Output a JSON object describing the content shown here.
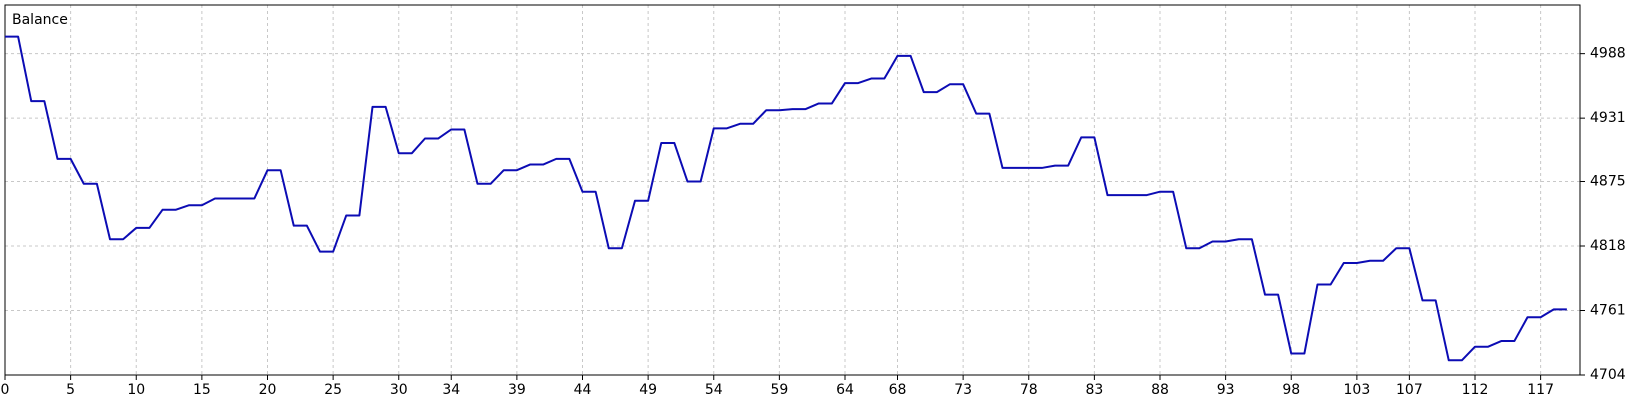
{
  "chart_data": {
    "type": "line",
    "title": "Balance",
    "color": "#0c0cb4",
    "values": [
      5003,
      5003,
      4946,
      4946,
      4895,
      4895,
      4873,
      4873,
      4824,
      4824,
      4834,
      4834,
      4850,
      4850,
      4854,
      4854,
      4860,
      4860,
      4860,
      4860,
      4885,
      4885,
      4836,
      4836,
      4813,
      4813,
      4845,
      4845,
      4941,
      4941,
      4900,
      4900,
      4913,
      4913,
      4921,
      4921,
      4873,
      4873,
      4885,
      4885,
      4890,
      4890,
      4895,
      4895,
      4866,
      4866,
      4816,
      4816,
      4858,
      4858,
      4909,
      4909,
      4875,
      4875,
      4922,
      4922,
      4926,
      4926,
      4938,
      4938,
      4939,
      4939,
      4944,
      4944,
      4962,
      4962,
      4966,
      4966,
      4986,
      4986,
      4954,
      4954,
      4961,
      4961,
      4935,
      4935,
      4887,
      4887,
      4887,
      4887,
      4889,
      4889,
      4914,
      4914,
      4863,
      4863,
      4863,
      4863,
      4866,
      4866,
      4816,
      4816,
      4822,
      4822,
      4824,
      4824,
      4775,
      4775,
      4723,
      4723,
      4784,
      4784,
      4803,
      4803,
      4805,
      4805,
      4816,
      4816,
      4770,
      4770,
      4717,
      4717,
      4729,
      4729,
      4734,
      4734,
      4755,
      4755,
      4762,
      4762
    ],
    "xlim": [
      0,
      120
    ],
    "xticks": [
      0,
      5,
      10,
      15,
      20,
      25,
      30,
      34,
      39,
      44,
      49,
      54,
      59,
      64,
      68,
      73,
      78,
      83,
      88,
      93,
      98,
      103,
      107,
      112,
      117
    ],
    "ylim": [
      4704,
      5031
    ],
    "yticks": [
      4704,
      4761,
      4818,
      4875,
      4931,
      4988
    ],
    "grid": true
  }
}
